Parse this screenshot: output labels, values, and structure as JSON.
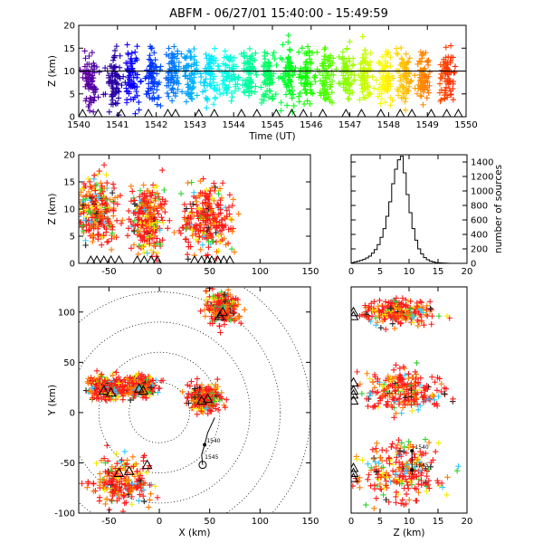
{
  "title": "ABFM - 06/27/01 15:40:00 - 15:49:59",
  "chart_data": [
    {
      "id": "time-height",
      "type": "scatter",
      "xlabel": "Time (UT)",
      "ylabel": "Z (km)",
      "xlim": [
        1540,
        1550
      ],
      "ylim": [
        0,
        20
      ],
      "xticks": [
        "1540",
        "1541",
        "1542",
        "1543",
        "1544",
        "1545",
        "1546",
        "1547",
        "1548",
        "1549",
        "1550"
      ],
      "yticks": [
        "0",
        "5",
        "10",
        "15",
        "20"
      ],
      "reference_line_z": 10,
      "color_scale": "time: purple (1540) to red (1550)",
      "clusters": [
        {
          "t": 1540.3,
          "z": 7.5,
          "zs": 3.0
        },
        {
          "t": 1540.9,
          "z": 8,
          "zs": 3.0
        },
        {
          "t": 1541.4,
          "z": 8,
          "zs": 3.0
        },
        {
          "t": 1541.9,
          "z": 8.5,
          "zs": 3.0
        },
        {
          "t": 1542.4,
          "z": 9,
          "zs": 3.0
        },
        {
          "t": 1542.9,
          "z": 9,
          "zs": 3.0
        },
        {
          "t": 1543.4,
          "z": 9,
          "zs": 3.0
        },
        {
          "t": 1543.9,
          "z": 9,
          "zs": 3.0
        },
        {
          "t": 1544.4,
          "z": 9,
          "zs": 3.0
        },
        {
          "t": 1544.9,
          "z": 9,
          "zs": 3.0
        },
        {
          "t": 1545.4,
          "z": 9,
          "zs": 3.0
        },
        {
          "t": 1545.9,
          "z": 9,
          "zs": 3.0
        },
        {
          "t": 1546.4,
          "z": 9,
          "zs": 3.0
        },
        {
          "t": 1546.9,
          "z": 9,
          "zs": 3.0
        },
        {
          "t": 1547.4,
          "z": 9,
          "zs": 3.0
        },
        {
          "t": 1547.9,
          "z": 9,
          "zs": 3.0
        },
        {
          "t": 1548.4,
          "z": 9,
          "zs": 3.0
        },
        {
          "t": 1548.9,
          "z": 9,
          "zs": 3.0
        },
        {
          "t": 1549.5,
          "z": 9,
          "zs": 3.0
        }
      ],
      "ground_markers_t": [
        1540.1,
        1540.5,
        1541.1,
        1541.8,
        1542.3,
        1542.5,
        1543.1,
        1543.5,
        1544.2,
        1544.6,
        1545.1,
        1545.5,
        1545.8,
        1546.3,
        1546.9,
        1547.3,
        1547.8,
        1548.3,
        1548.6,
        1549.1,
        1549.5,
        1549.8
      ]
    },
    {
      "id": "x-height",
      "type": "scatter",
      "xlabel": "",
      "ylabel": "Z (km)",
      "xlim": [
        -80,
        150
      ],
      "ylim": [
        0,
        20
      ],
      "xticks": [
        "-50",
        "0",
        "50",
        "100",
        "150"
      ],
      "yticks": [
        "0",
        "5",
        "10",
        "15",
        "20"
      ],
      "clusters": [
        {
          "x": -60,
          "xs": 10,
          "z": 9.5,
          "zs": 3.0
        },
        {
          "x": -12,
          "xs": 8,
          "z": 8.5,
          "zs": 3.0
        },
        {
          "x": 48,
          "xs": 12,
          "z": 8.5,
          "zs": 3.2
        }
      ],
      "ground_markers_x": [
        -68,
        -62,
        -55,
        -48,
        -40,
        -22,
        -15,
        -8,
        -2,
        35,
        42,
        48,
        52,
        58,
        64,
        70
      ]
    },
    {
      "id": "altitude-histogram",
      "type": "bar",
      "xlabel": "",
      "ylabel": "number of sources",
      "xlim": [
        0,
        20
      ],
      "ylim": [
        0,
        1500
      ],
      "xticks": [
        "0",
        "5",
        "10",
        "15",
        "20"
      ],
      "yticks": [
        "0",
        "200",
        "400",
        "600",
        "800",
        "1000",
        "1200",
        "1400"
      ],
      "bin_width_km": 0.5,
      "x": [
        0,
        0.5,
        1,
        1.5,
        2,
        2.5,
        3,
        3.5,
        4,
        4.5,
        5,
        5.5,
        6,
        6.5,
        7,
        7.5,
        8,
        8.5,
        9,
        9.5,
        10,
        10.5,
        11,
        11.5,
        12,
        12.5,
        13,
        13.5,
        14,
        14.5,
        15,
        15.5,
        16,
        16.5,
        17,
        17.5,
        18,
        18.5,
        19,
        19.5
      ],
      "values": [
        10,
        20,
        30,
        40,
        55,
        75,
        100,
        140,
        190,
        260,
        360,
        480,
        650,
        850,
        1100,
        1300,
        1430,
        1480,
        1250,
        950,
        700,
        480,
        320,
        200,
        130,
        80,
        50,
        30,
        20,
        10,
        8,
        5,
        3,
        2,
        0,
        0,
        0,
        0,
        0,
        0
      ]
    },
    {
      "id": "plan-view",
      "type": "scatter",
      "xlabel": "X (km)",
      "ylabel": "Y (km)",
      "xlim": [
        -80,
        150
      ],
      "ylim": [
        -100,
        125
      ],
      "xticks": [
        "-50",
        "0",
        "50",
        "100",
        "150"
      ],
      "yticks": [
        "-100",
        "-50",
        "0",
        "50",
        "100"
      ],
      "range_rings_km": [
        30,
        60,
        90,
        120,
        150
      ],
      "clusters": [
        {
          "x": 62,
          "xs": 8,
          "y": 105,
          "ys": 8
        },
        {
          "x": -50,
          "xs": 10,
          "y": 25,
          "ys": 6
        },
        {
          "x": -18,
          "xs": 8,
          "y": 26,
          "ys": 5
        },
        {
          "x": 45,
          "xs": 8,
          "y": 15,
          "ys": 7
        },
        {
          "x": -35,
          "xs": 15,
          "y": -68,
          "ys": 12
        }
      ],
      "track_labels": [
        "1540",
        "1545"
      ]
    },
    {
      "id": "height-y",
      "type": "scatter",
      "xlabel": "Z (km)",
      "ylabel": "",
      "xlim": [
        0,
        20
      ],
      "ylim": [
        -100,
        125
      ],
      "xticks": [
        "0",
        "5",
        "10",
        "15",
        "20"
      ],
      "yticks": [],
      "clusters": [
        {
          "z": 8,
          "zs": 3.0,
          "y": 100,
          "ys": 6
        },
        {
          "z": 9,
          "zs": 3.5,
          "y": 22,
          "ys": 10
        },
        {
          "z": 9,
          "zs": 3.5,
          "y": -60,
          "ys": 14
        }
      ],
      "track_labels": [
        "1540",
        "1545"
      ]
    }
  ]
}
